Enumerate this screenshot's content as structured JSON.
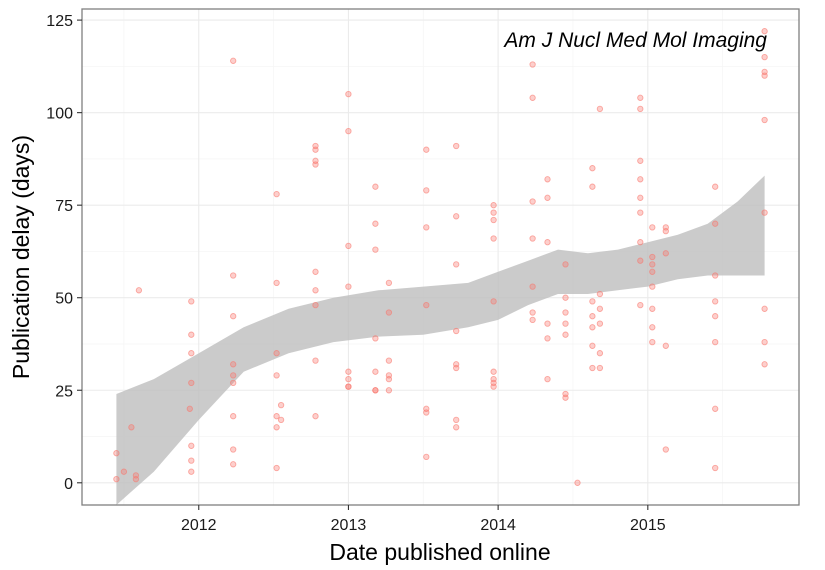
{
  "chart_data": {
    "type": "scatter",
    "annotation": "Am J Nucl Med Mol Imaging",
    "xlabel": "Date published online",
    "ylabel": "Publication delay (days)",
    "xlim": [
      2011.22,
      2016.01
    ],
    "ylim": [
      -6,
      128
    ],
    "x_ticks": [
      2012,
      2013,
      2014,
      2015
    ],
    "x_tick_labels": [
      "2012",
      "2013",
      "2014",
      "2015"
    ],
    "y_ticks": [
      0,
      25,
      50,
      75,
      100,
      125
    ],
    "y_tick_labels": [
      "0",
      "25",
      "50",
      "75",
      "100",
      "125"
    ],
    "grid": true,
    "point_color": "#f8766d",
    "ribbon_color": "#bebebe",
    "points": [
      [
        2011.45,
        8
      ],
      [
        2011.45,
        1
      ],
      [
        2011.5,
        3
      ],
      [
        2011.55,
        15
      ],
      [
        2011.58,
        1
      ],
      [
        2011.58,
        2
      ],
      [
        2011.6,
        52
      ],
      [
        2011.95,
        49
      ],
      [
        2011.95,
        40
      ],
      [
        2011.95,
        35
      ],
      [
        2011.95,
        27
      ],
      [
        2011.94,
        20
      ],
      [
        2011.95,
        10
      ],
      [
        2011.95,
        6
      ],
      [
        2011.95,
        3
      ],
      [
        2012.23,
        114
      ],
      [
        2012.23,
        56
      ],
      [
        2012.23,
        45
      ],
      [
        2012.23,
        32
      ],
      [
        2012.23,
        29
      ],
      [
        2012.23,
        27
      ],
      [
        2012.23,
        18
      ],
      [
        2012.23,
        9
      ],
      [
        2012.23,
        5
      ],
      [
        2012.52,
        78
      ],
      [
        2012.52,
        54
      ],
      [
        2012.52,
        35
      ],
      [
        2012.52,
        29
      ],
      [
        2012.55,
        21
      ],
      [
        2012.52,
        18
      ],
      [
        2012.55,
        17
      ],
      [
        2012.52,
        15
      ],
      [
        2012.52,
        4
      ],
      [
        2012.78,
        91
      ],
      [
        2012.78,
        90
      ],
      [
        2012.78,
        87
      ],
      [
        2012.78,
        86
      ],
      [
        2012.78,
        57
      ],
      [
        2012.78,
        52
      ],
      [
        2012.78,
        48
      ],
      [
        2012.78,
        33
      ],
      [
        2012.78,
        18
      ],
      [
        2013.0,
        105
      ],
      [
        2013.0,
        95
      ],
      [
        2013.0,
        64
      ],
      [
        2013.0,
        53
      ],
      [
        2013.0,
        30
      ],
      [
        2013.0,
        28
      ],
      [
        2013.0,
        26
      ],
      [
        2013.0,
        26
      ],
      [
        2013.18,
        80
      ],
      [
        2013.18,
        70
      ],
      [
        2013.18,
        63
      ],
      [
        2013.18,
        39
      ],
      [
        2013.18,
        30
      ],
      [
        2013.18,
        25
      ],
      [
        2013.18,
        25
      ],
      [
        2013.27,
        54
      ],
      [
        2013.27,
        46
      ],
      [
        2013.27,
        33
      ],
      [
        2013.27,
        29
      ],
      [
        2013.27,
        28
      ],
      [
        2013.27,
        25
      ],
      [
        2013.52,
        90
      ],
      [
        2013.52,
        79
      ],
      [
        2013.52,
        69
      ],
      [
        2013.52,
        48
      ],
      [
        2013.52,
        20
      ],
      [
        2013.52,
        19
      ],
      [
        2013.52,
        7
      ],
      [
        2013.72,
        91
      ],
      [
        2013.72,
        72
      ],
      [
        2013.72,
        59
      ],
      [
        2013.72,
        41
      ],
      [
        2013.72,
        32
      ],
      [
        2013.72,
        31
      ],
      [
        2013.72,
        17
      ],
      [
        2013.72,
        15
      ],
      [
        2013.97,
        75
      ],
      [
        2013.97,
        73
      ],
      [
        2013.97,
        71
      ],
      [
        2013.97,
        66
      ],
      [
        2013.97,
        49
      ],
      [
        2013.97,
        30
      ],
      [
        2013.97,
        28
      ],
      [
        2013.97,
        27
      ],
      [
        2013.97,
        26
      ],
      [
        2014.23,
        113
      ],
      [
        2014.23,
        104
      ],
      [
        2014.23,
        76
      ],
      [
        2014.23,
        66
      ],
      [
        2014.23,
        53
      ],
      [
        2014.23,
        46
      ],
      [
        2014.23,
        44
      ],
      [
        2014.33,
        82
      ],
      [
        2014.33,
        77
      ],
      [
        2014.33,
        65
      ],
      [
        2014.33,
        43
      ],
      [
        2014.33,
        39
      ],
      [
        2014.33,
        28
      ],
      [
        2014.45,
        59
      ],
      [
        2014.45,
        50
      ],
      [
        2014.45,
        46
      ],
      [
        2014.45,
        43
      ],
      [
        2014.45,
        40
      ],
      [
        2014.45,
        24
      ],
      [
        2014.45,
        23
      ],
      [
        2014.53,
        0
      ],
      [
        2014.63,
        85
      ],
      [
        2014.63,
        80
      ],
      [
        2014.63,
        49
      ],
      [
        2014.63,
        45
      ],
      [
        2014.63,
        42
      ],
      [
        2014.63,
        37
      ],
      [
        2014.63,
        31
      ],
      [
        2014.68,
        101
      ],
      [
        2014.68,
        51
      ],
      [
        2014.68,
        47
      ],
      [
        2014.68,
        43
      ],
      [
        2014.68,
        35
      ],
      [
        2014.68,
        31
      ],
      [
        2014.95,
        104
      ],
      [
        2014.95,
        101
      ],
      [
        2014.95,
        87
      ],
      [
        2014.95,
        82
      ],
      [
        2014.95,
        77
      ],
      [
        2014.95,
        73
      ],
      [
        2014.95,
        65
      ],
      [
        2014.95,
        60
      ],
      [
        2014.95,
        48
      ],
      [
        2015.03,
        69
      ],
      [
        2015.03,
        61
      ],
      [
        2015.03,
        59
      ],
      [
        2015.03,
        57
      ],
      [
        2015.03,
        53
      ],
      [
        2015.03,
        47
      ],
      [
        2015.03,
        42
      ],
      [
        2015.03,
        38
      ],
      [
        2015.12,
        69
      ],
      [
        2015.12,
        68
      ],
      [
        2015.12,
        62
      ],
      [
        2015.12,
        37
      ],
      [
        2015.12,
        9
      ],
      [
        2015.45,
        80
      ],
      [
        2015.45,
        70
      ],
      [
        2015.45,
        56
      ],
      [
        2015.45,
        49
      ],
      [
        2015.45,
        45
      ],
      [
        2015.45,
        38
      ],
      [
        2015.45,
        20
      ],
      [
        2015.45,
        4
      ],
      [
        2015.78,
        122
      ],
      [
        2015.78,
        115
      ],
      [
        2015.78,
        111
      ],
      [
        2015.78,
        110
      ],
      [
        2015.78,
        98
      ],
      [
        2015.78,
        73
      ],
      [
        2015.78,
        47
      ],
      [
        2015.78,
        38
      ],
      [
        2015.78,
        32
      ]
    ],
    "smooth_band": {
      "x": [
        2011.45,
        2011.7,
        2012.0,
        2012.3,
        2012.6,
        2012.9,
        2013.2,
        2013.5,
        2013.8,
        2014.0,
        2014.2,
        2014.4,
        2014.6,
        2014.8,
        2015.0,
        2015.2,
        2015.4,
        2015.6,
        2015.78
      ],
      "upper": [
        24,
        28,
        35,
        42,
        47,
        50,
        52,
        53,
        54,
        57,
        60,
        63,
        62,
        63,
        65,
        67,
        70,
        76,
        83
      ],
      "lower": [
        -6,
        3,
        17,
        30,
        35,
        38,
        39.5,
        40,
        42,
        44,
        48,
        51,
        51,
        52,
        53,
        55,
        56,
        56,
        56
      ]
    }
  }
}
